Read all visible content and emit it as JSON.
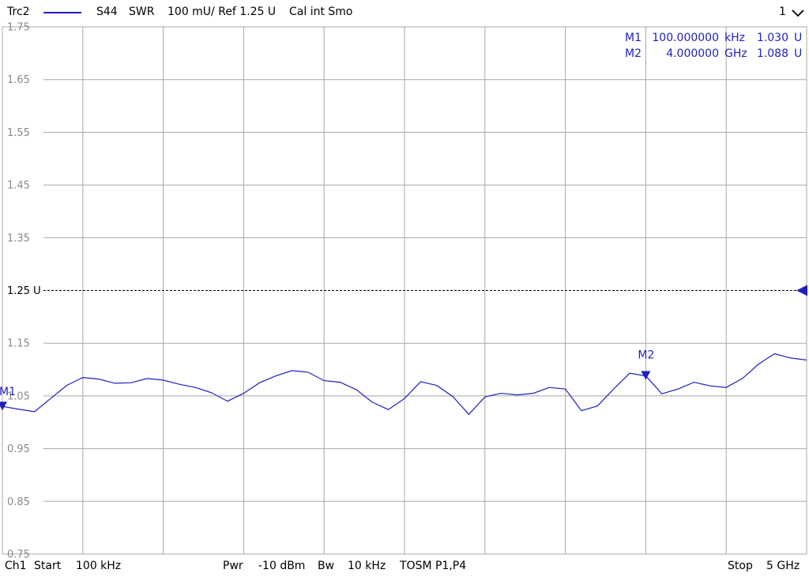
{
  "header": {
    "trace": "Trc2",
    "param": "S44",
    "format": "SWR",
    "scale": "100 mU/ Ref 1.25 U",
    "cal": "Cal int Smo",
    "window": "1"
  },
  "footer": {
    "channel": "Ch1",
    "start_label": "Start",
    "start_value": "100 kHz",
    "pwr_label": "Pwr",
    "pwr_value": "-10 dBm",
    "bw_label": "Bw",
    "bw_value": "10 kHz",
    "cal_info": "TOSM P1,P4",
    "stop_label": "Stop",
    "stop_value": "5 GHz"
  },
  "markers": [
    {
      "id": "M1",
      "freq": "100.000000",
      "unit": "kHz",
      "value": "1.030",
      "vunit": "U"
    },
    {
      "id": "M2",
      "freq": "4.000000",
      "unit": "GHz",
      "value": "1.088",
      "vunit": "U"
    }
  ],
  "colors": {
    "trace": "#1f1fbf",
    "grid": "#a8a8a8",
    "ref": "#000000",
    "ticks": "#8a8a8a"
  },
  "chart_data": {
    "type": "line",
    "xlim": [
      0.0001,
      5
    ],
    "x_unit": "GHz",
    "ylim": [
      0.75,
      1.75
    ],
    "ref_value": 1.25,
    "ref_label": "1.25 U",
    "ytick_labels": [
      "1.75",
      "1.65",
      "1.55",
      "1.45",
      "1.35",
      "1.25 U",
      "1.15",
      "1.05",
      "0.95",
      "0.85",
      "0.75"
    ],
    "series": [
      {
        "x": [
          0.0001,
          0.1,
          0.2,
          0.3,
          0.4,
          0.5,
          0.6,
          0.7,
          0.8,
          0.9,
          1.0,
          1.1,
          1.2,
          1.3,
          1.4,
          1.5,
          1.6,
          1.7,
          1.8,
          1.9,
          2.0,
          2.1,
          2.2,
          2.3,
          2.4,
          2.5,
          2.6,
          2.7,
          2.8,
          2.9,
          3.0,
          3.1,
          3.2,
          3.3,
          3.4,
          3.5,
          3.6,
          3.7,
          3.8,
          3.9,
          4.0,
          4.1,
          4.2,
          4.3,
          4.4,
          4.5,
          4.6,
          4.7,
          4.8,
          4.9,
          5.0
        ],
        "y": [
          1.03,
          1.025,
          1.02,
          1.045,
          1.07,
          1.085,
          1.082,
          1.074,
          1.075,
          1.083,
          1.08,
          1.072,
          1.066,
          1.056,
          1.04,
          1.055,
          1.075,
          1.088,
          1.098,
          1.095,
          1.079,
          1.076,
          1.062,
          1.038,
          1.024,
          1.045,
          1.077,
          1.07,
          1.049,
          1.015,
          1.048,
          1.055,
          1.052,
          1.055,
          1.066,
          1.063,
          1.022,
          1.031,
          1.063,
          1.093,
          1.088,
          1.054,
          1.063,
          1.076,
          1.069,
          1.066,
          1.083,
          1.11,
          1.13,
          1.122,
          1.118
        ]
      }
    ]
  }
}
